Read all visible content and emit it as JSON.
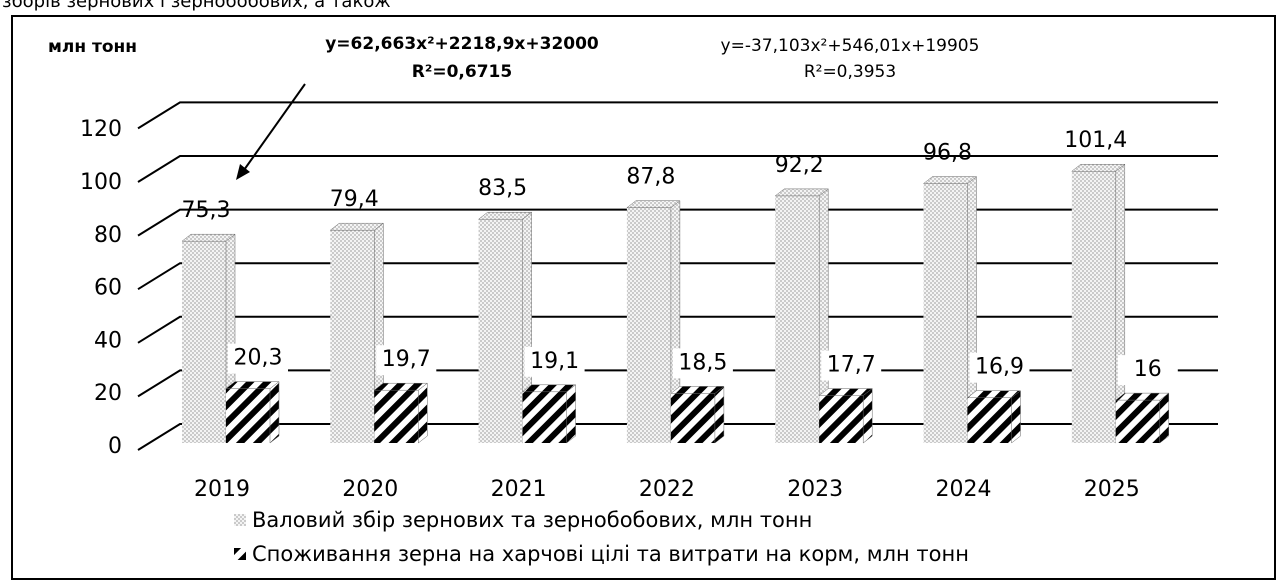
{
  "header_text": "зборів зернових і зернобобових, а також",
  "chart_data": {
    "type": "bar3d",
    "y_unit": "млн  тонн",
    "annotations": [
      {
        "lines": [
          "y=62,663x²+2218,9x+32000",
          "R²=0,6715"
        ]
      },
      {
        "lines": [
          "y=-37,103x²+546,01x+19905",
          "R²=0,3953"
        ]
      }
    ],
    "categories": [
      "2019",
      "2020",
      "2021",
      "2022",
      "2023",
      "2024",
      "2025"
    ],
    "series": [
      {
        "name": "Валовий збір зернових та зернобобових, млн тонн",
        "color": "#bdbdbd",
        "values": [
          75.3,
          79.4,
          83.5,
          87.8,
          92.2,
          96.8,
          101.4
        ],
        "value_labels": [
          "75,3",
          "79,4",
          "83,5",
          "87,8",
          "92,2",
          "96,8",
          "101,4"
        ]
      },
      {
        "name": "Споживання зерна на харчові цілі та витрати на корм, млн тонн",
        "color": "#000000",
        "values": [
          20.3,
          19.7,
          19.1,
          18.5,
          17.7,
          16.9,
          16
        ],
        "value_labels": [
          "20,3",
          "19,7",
          "19,1",
          "18,5",
          "17,7",
          "16,9",
          "16"
        ]
      }
    ],
    "ylim": [
      0,
      120
    ],
    "yticks": [
      0,
      20,
      40,
      60,
      80,
      100,
      120
    ],
    "grid": true,
    "legend": "bottom"
  }
}
